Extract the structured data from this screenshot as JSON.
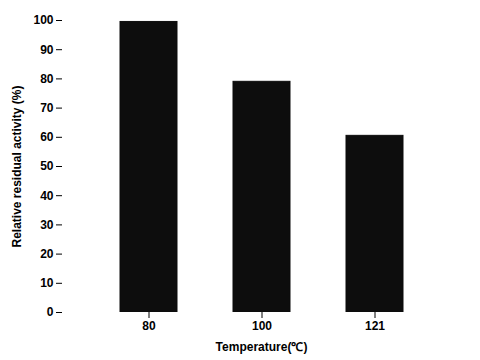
{
  "chart_data": {
    "type": "bar",
    "categories": [
      "80",
      "100",
      "121"
    ],
    "values": [
      99.5,
      79.0,
      60.5
    ],
    "color": "#0d0d0d",
    "xlabel": "Temperature(℃)",
    "ylabel": "Relative residual activity (%)",
    "ylim": [
      0,
      100
    ],
    "yticks": [
      0,
      10,
      20,
      30,
      40,
      50,
      60,
      70,
      80,
      90,
      100
    ],
    "grid": false
  }
}
